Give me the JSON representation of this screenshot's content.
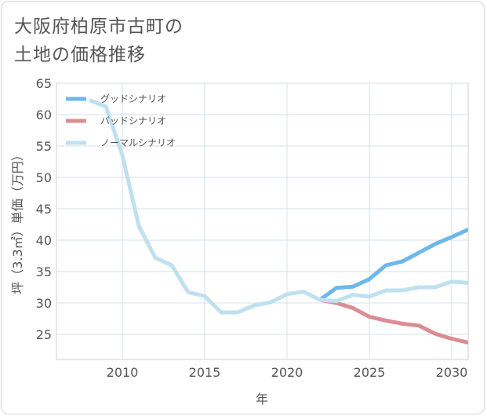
{
  "title_lines": [
    "大阪府柏原市古町の",
    "土地の価格推移"
  ],
  "chart_data": {
    "type": "line",
    "xlabel": "年",
    "ylabel": "坪（3.3㎡）単価（万円）",
    "xlim": [
      2006,
      2031
    ],
    "ylim": [
      21,
      65
    ],
    "x_ticks": [
      2010,
      2015,
      2020,
      2025,
      2030
    ],
    "y_ticks": [
      25,
      30,
      35,
      40,
      45,
      50,
      55,
      60,
      65
    ],
    "grid": true,
    "legend_position": "top-left",
    "series": [
      {
        "name": "グッドシナリオ",
        "color": "#6cb8ea",
        "x": [
          2022,
          2023,
          2024,
          2025,
          2026,
          2027,
          2028,
          2029,
          2030,
          2031
        ],
        "values": [
          30.5,
          32.4,
          32.6,
          33.8,
          36.0,
          36.6,
          38.0,
          39.4,
          40.5,
          41.7
        ]
      },
      {
        "name": "バッドシナリオ",
        "color": "#dc8c93",
        "x": [
          2022,
          2023,
          2024,
          2025,
          2026,
          2027,
          2028,
          2029,
          2030,
          2031
        ],
        "values": [
          30.5,
          30.0,
          29.2,
          27.8,
          27.2,
          26.7,
          26.4,
          25.1,
          24.3,
          23.7
        ]
      },
      {
        "name": "ノーマルシナリオ",
        "color": "#bfe0ee",
        "x": [
          2008,
          2009,
          2010,
          2011,
          2012,
          2013,
          2014,
          2015,
          2016,
          2017,
          2018,
          2019,
          2020,
          2021,
          2022,
          2023,
          2024,
          2025,
          2026,
          2027,
          2028,
          2029,
          2030,
          2031
        ],
        "values": [
          62.3,
          61.3,
          53.5,
          42.3,
          37.2,
          36.0,
          31.7,
          31.1,
          28.5,
          28.5,
          29.6,
          30.1,
          31.4,
          31.8,
          30.5,
          30.3,
          31.3,
          31.0,
          32.0,
          32.0,
          32.5,
          32.5,
          33.4,
          33.2
        ]
      }
    ]
  }
}
